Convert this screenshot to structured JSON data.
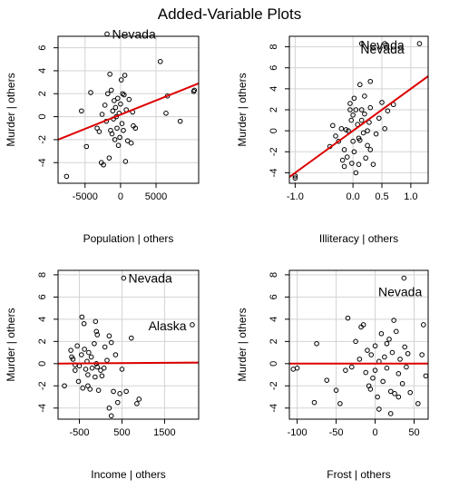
{
  "title": "Added-Variable Plots",
  "colors": {
    "fit_line": "#dd0000",
    "grid": "#d3d3d3",
    "points": "#000000",
    "frame": "#000000"
  },
  "chart_data": [
    {
      "type": "scatter",
      "xlabel": "Population | others",
      "ylabel": "Murder  | others",
      "xlim": [
        -8800,
        11000
      ],
      "ylim": [
        -5.8,
        7.0
      ],
      "xticks": [
        -5000,
        0,
        5000
      ],
      "xtick_labels": [
        "-5000",
        "0",
        "5000"
      ],
      "yticks": [
        -4,
        -2,
        0,
        2,
        4,
        6
      ],
      "ytick_labels": [
        "-4",
        "-2",
        "0",
        "2",
        "4",
        "6"
      ],
      "grid": true,
      "fit_line": {
        "x": [
          -8800,
          11000
        ],
        "y": [
          -2.0,
          2.9
        ]
      },
      "annotations": [
        {
          "text": "Nevada",
          "x": -1200,
          "y": 7.2
        }
      ],
      "points": [
        [
          -1900,
          7.2
        ],
        [
          -7600,
          -5.2
        ],
        [
          10300,
          2.2
        ],
        [
          10400,
          2.3
        ],
        [
          5600,
          4.8
        ],
        [
          6600,
          1.8
        ],
        [
          6400,
          0.3
        ],
        [
          8400,
          -0.4
        ],
        [
          -4200,
          2.1
        ],
        [
          -3300,
          -1.0
        ],
        [
          -3000,
          -1.3
        ],
        [
          -2600,
          0.2
        ],
        [
          -2200,
          1.0
        ],
        [
          -2000,
          -0.4
        ],
        [
          -1800,
          2.0
        ],
        [
          -1600,
          -3.6
        ],
        [
          -1500,
          3.7
        ],
        [
          -1400,
          -1.2
        ],
        [
          -1300,
          2.3
        ],
        [
          -1200,
          -1.5
        ],
        [
          -1100,
          0.5
        ],
        [
          -1000,
          -0.2
        ],
        [
          -900,
          1.4
        ],
        [
          -800,
          -2.0
        ],
        [
          -700,
          0.8
        ],
        [
          -600,
          0.0
        ],
        [
          -500,
          -1.0
        ],
        [
          -400,
          1.6
        ],
        [
          -300,
          -2.5
        ],
        [
          -200,
          0.3
        ],
        [
          -100,
          -1.8
        ],
        [
          0,
          1.1
        ],
        [
          100,
          3.2
        ],
        [
          200,
          -0.6
        ],
        [
          300,
          2.0
        ],
        [
          400,
          -1.2
        ],
        [
          500,
          1.9
        ],
        [
          600,
          3.6
        ],
        [
          700,
          -3.9
        ],
        [
          800,
          0.6
        ],
        [
          1000,
          -2.1
        ],
        [
          1200,
          1.5
        ],
        [
          1500,
          -2.3
        ],
        [
          1700,
          0.4
        ],
        [
          -4800,
          -2.6
        ],
        [
          -5500,
          0.5
        ],
        [
          -2700,
          -4.0
        ],
        [
          -2400,
          -4.2
        ],
        [
          2100,
          -1.0
        ],
        [
          1800,
          -0.8
        ]
      ]
    },
    {
      "type": "scatter",
      "xlabel": "Illiteracy | others",
      "ylabel": "Murder  | others",
      "xlim": [
        -1.1,
        1.3
      ],
      "ylim": [
        -5.0,
        9.0
      ],
      "xticks": [
        -1.0,
        0.0,
        0.5,
        1.0
      ],
      "xtick_labels": [
        "-1.0",
        "0.0",
        "0.5",
        "1.0"
      ],
      "yticks": [
        -4,
        -2,
        0,
        2,
        4,
        6,
        8
      ],
      "ytick_labels": [
        "-4",
        "-2",
        "0",
        "2",
        "4",
        "6",
        "8"
      ],
      "grid": true,
      "fit_line": {
        "x": [
          -1.1,
          1.3
        ],
        "y": [
          -4.4,
          5.2
        ]
      },
      "annotations": [
        {
          "text": "Nevada",
          "x": 0.13,
          "y": 8.2
        },
        {
          "text": "Nevada",
          "x": 0.13,
          "y": 7.8
        }
      ],
      "points": [
        [
          -1.0,
          -4.5
        ],
        [
          -1.0,
          -4.3
        ],
        [
          0.15,
          8.3
        ],
        [
          1.15,
          8.3
        ],
        [
          0.55,
          8.3
        ],
        [
          0.3,
          4.7
        ],
        [
          0.7,
          2.5
        ],
        [
          0.5,
          2.7
        ],
        [
          0.6,
          1.9
        ],
        [
          0.3,
          2.2
        ],
        [
          -0.25,
          -1.0
        ],
        [
          -0.2,
          0.2
        ],
        [
          -0.15,
          -1.8
        ],
        [
          -0.12,
          0.1
        ],
        [
          -0.1,
          -2.5
        ],
        [
          -0.08,
          0.0
        ],
        [
          -0.05,
          2.6
        ],
        [
          -0.03,
          1.0
        ],
        [
          0.0,
          -1.0
        ],
        [
          0.02,
          3.1
        ],
        [
          0.05,
          2.0
        ],
        [
          0.08,
          0.6
        ],
        [
          0.1,
          -0.7
        ],
        [
          0.12,
          4.4
        ],
        [
          0.15,
          2.0
        ],
        [
          0.18,
          -0.2
        ],
        [
          0.2,
          1.6
        ],
        [
          0.22,
          -2.6
        ],
        [
          0.25,
          -1.4
        ],
        [
          0.28,
          0.8
        ],
        [
          -0.18,
          -2.8
        ],
        [
          -0.15,
          -3.4
        ],
        [
          0.1,
          -3.2
        ],
        [
          -0.4,
          -1.5
        ],
        [
          0.35,
          -3.2
        ],
        [
          -0.02,
          -3.1
        ],
        [
          0.05,
          -4.0
        ],
        [
          0.4,
          -0.3
        ],
        [
          0.45,
          1.2
        ],
        [
          0.15,
          1.0
        ],
        [
          -0.3,
          -0.5
        ],
        [
          0.02,
          -2.0
        ],
        [
          0.3,
          -1.8
        ],
        [
          -0.05,
          2.0
        ],
        [
          0.2,
          3.3
        ],
        [
          0.0,
          1.5
        ],
        [
          0.25,
          0.0
        ],
        [
          -0.35,
          0.5
        ],
        [
          0.55,
          0.2
        ],
        [
          0.12,
          -0.9
        ]
      ]
    },
    {
      "type": "scatter",
      "xlabel": "Income | others",
      "ylabel": "Murder  | others",
      "xlim": [
        -1000,
        2300
      ],
      "ylim": [
        -5.0,
        8.4
      ],
      "xticks": [
        -500,
        500,
        1500
      ],
      "xtick_labels": [
        "-500",
        "500",
        "1500"
      ],
      "yticks": [
        -4,
        -2,
        0,
        2,
        4,
        6,
        8
      ],
      "ytick_labels": [
        "-4",
        "-2",
        "0",
        "2",
        "4",
        "6",
        "8"
      ],
      "grid": true,
      "fit_line": {
        "x": [
          -1000,
          2300
        ],
        "y": [
          0.0,
          0.1
        ]
      },
      "annotations": [
        {
          "text": "Nevada",
          "x": 650,
          "y": 7.7
        },
        {
          "text": "Alaska",
          "x": 1120,
          "y": 3.4
        }
      ],
      "points": [
        [
          540,
          7.7
        ],
        [
          2150,
          3.5
        ],
        [
          720,
          2.3
        ],
        [
          -440,
          4.2
        ],
        [
          -390,
          3.6
        ],
        [
          -120,
          3.8
        ],
        [
          -80,
          2.6
        ],
        [
          -100,
          2.9
        ],
        [
          -850,
          -2.0
        ],
        [
          -700,
          1.2
        ],
        [
          -650,
          0.4
        ],
        [
          -600,
          -0.6
        ],
        [
          -550,
          1.6
        ],
        [
          -500,
          -0.2
        ],
        [
          -450,
          0.8
        ],
        [
          -420,
          -2.2
        ],
        [
          -380,
          1.3
        ],
        [
          -350,
          -0.5
        ],
        [
          -320,
          0.2
        ],
        [
          -300,
          -1.0
        ],
        [
          -280,
          1.0
        ],
        [
          -250,
          -2.3
        ],
        [
          -220,
          0.6
        ],
        [
          -200,
          -0.4
        ],
        [
          -150,
          1.8
        ],
        [
          -130,
          -1.2
        ],
        [
          -100,
          0.0
        ],
        [
          -80,
          -0.3
        ],
        [
          -50,
          -2.4
        ],
        [
          0,
          -0.6
        ],
        [
          30,
          -1.1
        ],
        [
          80,
          -0.4
        ],
        [
          100,
          1.5
        ],
        [
          150,
          0.3
        ],
        [
          200,
          2.5
        ],
        [
          250,
          1.9
        ],
        [
          300,
          -2.5
        ],
        [
          350,
          0.8
        ],
        [
          400,
          -3.5
        ],
        [
          450,
          -2.7
        ],
        [
          500,
          -0.5
        ],
        [
          -600,
          -0.1
        ],
        [
          -520,
          -1.6
        ],
        [
          -680,
          0.6
        ],
        [
          -300,
          -2.0
        ],
        [
          200,
          -4.0
        ],
        [
          250,
          -4.7
        ],
        [
          600,
          -2.5
        ],
        [
          850,
          -3.6
        ],
        [
          900,
          -3.2
        ]
      ]
    },
    {
      "type": "scatter",
      "xlabel": "Frost | others",
      "ylabel": "Murder  | others",
      "xlim": [
        -110,
        68
      ],
      "ylim": [
        -5.0,
        8.4
      ],
      "xticks": [
        -100,
        -50,
        0,
        50
      ],
      "xtick_labels": [
        "-100",
        "-50",
        "0",
        "50"
      ],
      "yticks": [
        -4,
        -2,
        0,
        2,
        4,
        6,
        8
      ],
      "ytick_labels": [
        "-4",
        "-2",
        "0",
        "2",
        "4",
        "6",
        "8"
      ],
      "grid": true,
      "fit_line": {
        "x": [
          -110,
          68
        ],
        "y": [
          0.0,
          0.0
        ]
      },
      "annotations": [
        {
          "text": "Nevada",
          "x": 4,
          "y": 6.5
        }
      ],
      "points": [
        [
          37,
          7.7
        ],
        [
          62,
          3.5
        ],
        [
          -105,
          -0.5
        ],
        [
          -100,
          -0.4
        ],
        [
          -75,
          1.8
        ],
        [
          -78,
          -3.5
        ],
        [
          -62,
          -1.5
        ],
        [
          -35,
          4.1
        ],
        [
          -50,
          -2.4
        ],
        [
          -38,
          -0.6
        ],
        [
          -30,
          -0.3
        ],
        [
          -25,
          2.0
        ],
        [
          -20,
          0.4
        ],
        [
          -15,
          3.5
        ],
        [
          -12,
          -0.8
        ],
        [
          -10,
          1.2
        ],
        [
          -8,
          -2.0
        ],
        [
          -5,
          0.8
        ],
        [
          -3,
          -1.3
        ],
        [
          0,
          1.6
        ],
        [
          0,
          -0.6
        ],
        [
          3,
          -3.0
        ],
        [
          5,
          0.2
        ],
        [
          8,
          2.7
        ],
        [
          10,
          -1.6
        ],
        [
          12,
          0.6
        ],
        [
          15,
          -0.4
        ],
        [
          18,
          2.2
        ],
        [
          20,
          -2.5
        ],
        [
          22,
          1.0
        ],
        [
          25,
          -2.7
        ],
        [
          27,
          2.9
        ],
        [
          30,
          -0.9
        ],
        [
          32,
          0.4
        ],
        [
          35,
          -1.8
        ],
        [
          38,
          1.5
        ],
        [
          40,
          -0.3
        ],
        [
          42,
          0.9
        ],
        [
          45,
          -2.6
        ],
        [
          55,
          -3.6
        ],
        [
          60,
          0.8
        ],
        [
          65,
          -1.1
        ],
        [
          -45,
          -3.6
        ],
        [
          20,
          -4.5
        ],
        [
          5,
          -4.1
        ],
        [
          -18,
          3.3
        ],
        [
          24,
          3.9
        ],
        [
          -6,
          -2.3
        ],
        [
          30,
          -3.0
        ],
        [
          15,
          1.8
        ]
      ]
    }
  ]
}
